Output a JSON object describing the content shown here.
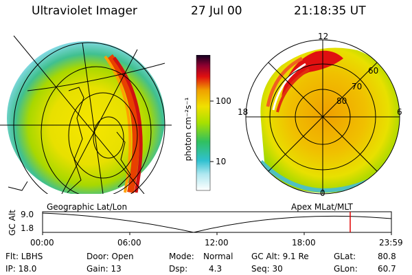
{
  "header": {
    "instrument": "Ultraviolet Imager",
    "date": "27 Jul 00",
    "time": "21:18:35 UT"
  },
  "colorbar": {
    "unit_label": "photon cm⁻²s⁻¹",
    "ticks": [
      "100",
      "10"
    ]
  },
  "polar_plot": {
    "top": "12",
    "left": "18",
    "right": "6",
    "bottom": "0",
    "lat_60": "60",
    "lat_70": "70",
    "lat_80": "80"
  },
  "labels": {
    "geo": "Geographic Lat/Lon",
    "apex": "Apex MLat/MLT"
  },
  "timeline": {
    "axis_label": "GC Alt",
    "y_top": "9.0",
    "y_bottom": "1.8",
    "ticks": [
      "00:00",
      "06:00",
      "12:00",
      "18:00",
      "23:59"
    ]
  },
  "info": {
    "flt": "Flt: LBHS",
    "ip": "IP: 18.0",
    "door": "Door: Open",
    "gain": "Gain: 13",
    "mode_label": "Mode:",
    "mode_value": "Normal",
    "dsp_label": "Dsp:",
    "dsp_value": "4.3",
    "gcalt": "GC Alt: 9.1 Re",
    "seq": "Seq: 30",
    "glat_label": "GLat:",
    "glat_value": "80.8",
    "glon_label": "GLon:",
    "glon_value": "60.7"
  }
}
